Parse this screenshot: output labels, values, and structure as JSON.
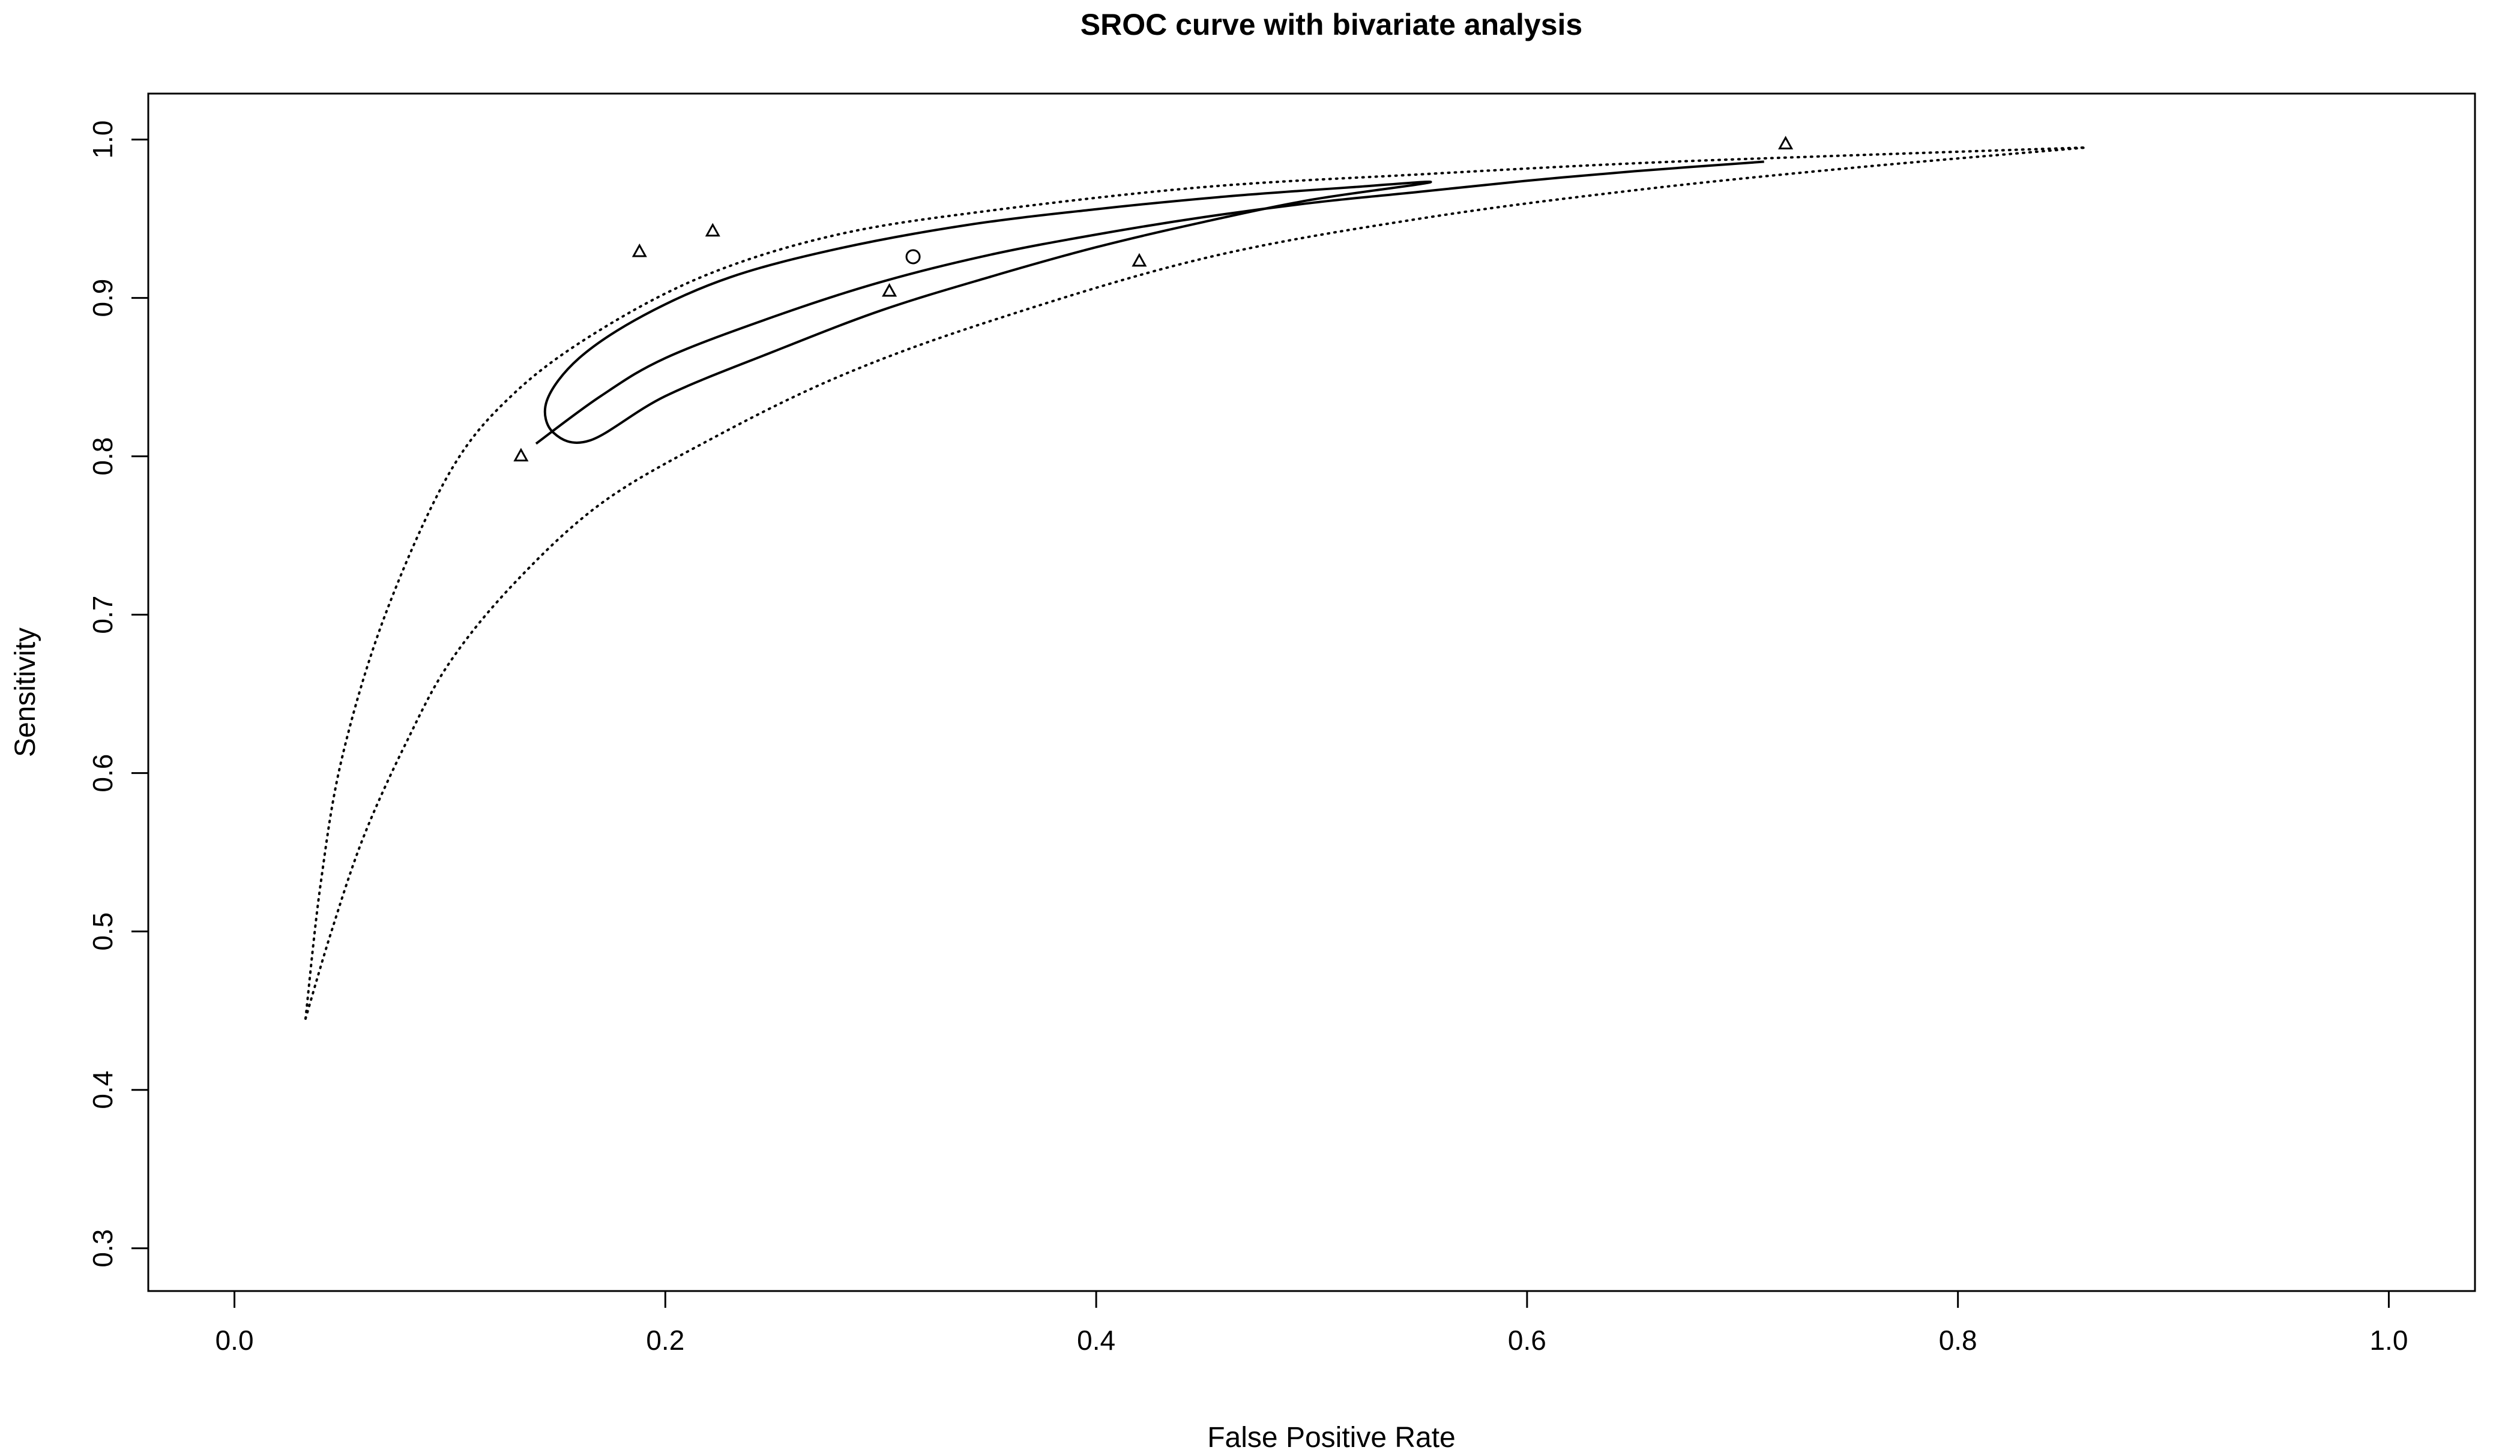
{
  "chart_data": {
    "type": "line",
    "title": "SROC curve with bivariate analysis",
    "xlabel": "False Positive Rate",
    "ylabel": "Sensitivity",
    "xlim": [
      -0.04,
      1.04
    ],
    "ylim": [
      0.273,
      1.029
    ],
    "x_ticks": [
      0.0,
      0.2,
      0.4,
      0.6,
      0.8,
      1.0
    ],
    "y_ticks": [
      0.3,
      0.4,
      0.5,
      0.6,
      0.7,
      0.8,
      0.9,
      1.0
    ],
    "x_tick_labels": [
      "0.0",
      "0.2",
      "0.4",
      "0.6",
      "0.8",
      "1.0"
    ],
    "y_tick_labels": [
      "0.3",
      "0.4",
      "0.5",
      "0.6",
      "0.7",
      "0.8",
      "0.9",
      "1.0"
    ],
    "grid": false,
    "series": [
      {
        "style": "solid",
        "x": [
          0.14,
          0.17,
          0.2,
          0.25,
          0.3,
          0.35,
          0.4,
          0.45,
          0.5,
          0.55,
          0.6,
          0.65,
          0.71
        ],
        "y": [
          0.808,
          0.838,
          0.862,
          0.888,
          0.91,
          0.927,
          0.94,
          0.951,
          0.96,
          0.967,
          0.974,
          0.98,
          0.986
        ]
      },
      {
        "style": "solid-closed",
        "x": [
          0.148,
          0.145,
          0.16,
          0.19,
          0.23,
          0.28,
          0.34,
          0.4,
          0.46,
          0.52,
          0.555,
          0.5,
          0.45,
          0.4,
          0.35,
          0.3,
          0.25,
          0.2,
          0.165,
          0.148
        ],
        "y": [
          0.815,
          0.835,
          0.862,
          0.889,
          0.913,
          0.931,
          0.946,
          0.956,
          0.964,
          0.97,
          0.973,
          0.962,
          0.948,
          0.932,
          0.913,
          0.892,
          0.866,
          0.838,
          0.81,
          0.815
        ]
      },
      {
        "style": "dotted",
        "x": [
          0.033,
          0.04,
          0.05,
          0.07,
          0.1,
          0.13,
          0.17,
          0.22,
          0.28,
          0.35,
          0.45,
          0.55,
          0.65,
          0.75,
          0.86
        ],
        "y": [
          0.445,
          0.53,
          0.61,
          0.7,
          0.79,
          0.84,
          0.88,
          0.915,
          0.94,
          0.955,
          0.97,
          0.978,
          0.985,
          0.99,
          0.995
        ]
      },
      {
        "style": "dotted",
        "x": [
          0.033,
          0.045,
          0.06,
          0.08,
          0.1,
          0.13,
          0.17,
          0.22,
          0.28,
          0.35,
          0.45,
          0.55,
          0.65,
          0.75,
          0.86
        ],
        "y": [
          0.445,
          0.5,
          0.56,
          0.62,
          0.67,
          0.72,
          0.77,
          0.81,
          0.85,
          0.885,
          0.925,
          0.95,
          0.968,
          0.982,
          0.995
        ]
      }
    ],
    "points": [
      {
        "marker": "triangle",
        "x": 0.133,
        "y": 0.8
      },
      {
        "marker": "triangle",
        "x": 0.188,
        "y": 0.929
      },
      {
        "marker": "triangle",
        "x": 0.222,
        "y": 0.942
      },
      {
        "marker": "triangle",
        "x": 0.304,
        "y": 0.904
      },
      {
        "marker": "triangle",
        "x": 0.42,
        "y": 0.923
      },
      {
        "marker": "triangle",
        "x": 0.72,
        "y": 0.997
      },
      {
        "marker": "circle",
        "x": 0.315,
        "y": 0.926
      }
    ]
  }
}
